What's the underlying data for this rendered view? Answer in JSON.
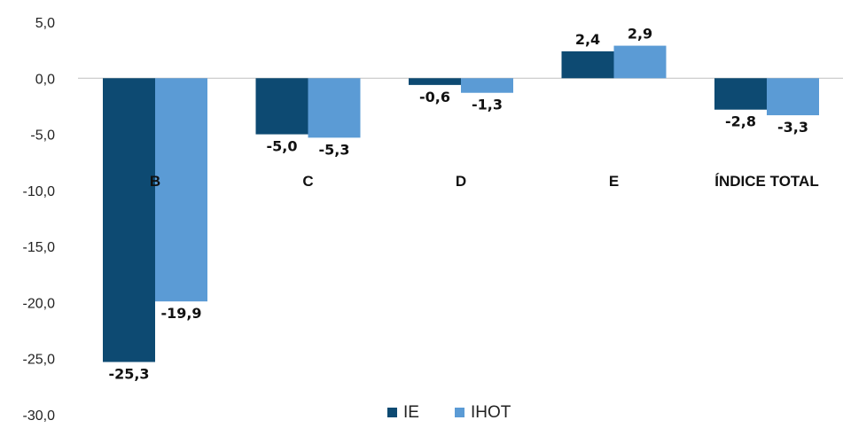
{
  "chart_data": {
    "type": "bar",
    "categories": [
      "B",
      "C",
      "D",
      "E",
      "ÍNDICE TOTAL"
    ],
    "series": [
      {
        "name": "IE",
        "values": [
          -25.3,
          -5.0,
          -0.6,
          2.4,
          -2.8
        ],
        "labels": [
          "-25,3",
          "-5,0",
          "-0,6",
          "2,4",
          "-2,8"
        ],
        "color": "#0d4a72"
      },
      {
        "name": "IHOT",
        "values": [
          -19.9,
          -5.3,
          -1.3,
          2.9,
          -3.3
        ],
        "labels": [
          "-19,9",
          "-5,3",
          "-1,3",
          "2,9",
          "-3,3"
        ],
        "color": "#5b9bd5"
      }
    ],
    "yticks": [
      "5,0",
      "0,0",
      "-5,0",
      "-10,0",
      "-15,0",
      "-20,0",
      "-25,0",
      "-30,0"
    ],
    "ytick_values": [
      5,
      0,
      -5,
      -10,
      -15,
      -20,
      -25,
      -30
    ],
    "ylim": [
      -30,
      5
    ],
    "grid": false,
    "legend": "bottom-center",
    "category_label_colors": [
      "#ffffff",
      "#111111",
      "#111111",
      "#111111",
      "#111111"
    ]
  }
}
